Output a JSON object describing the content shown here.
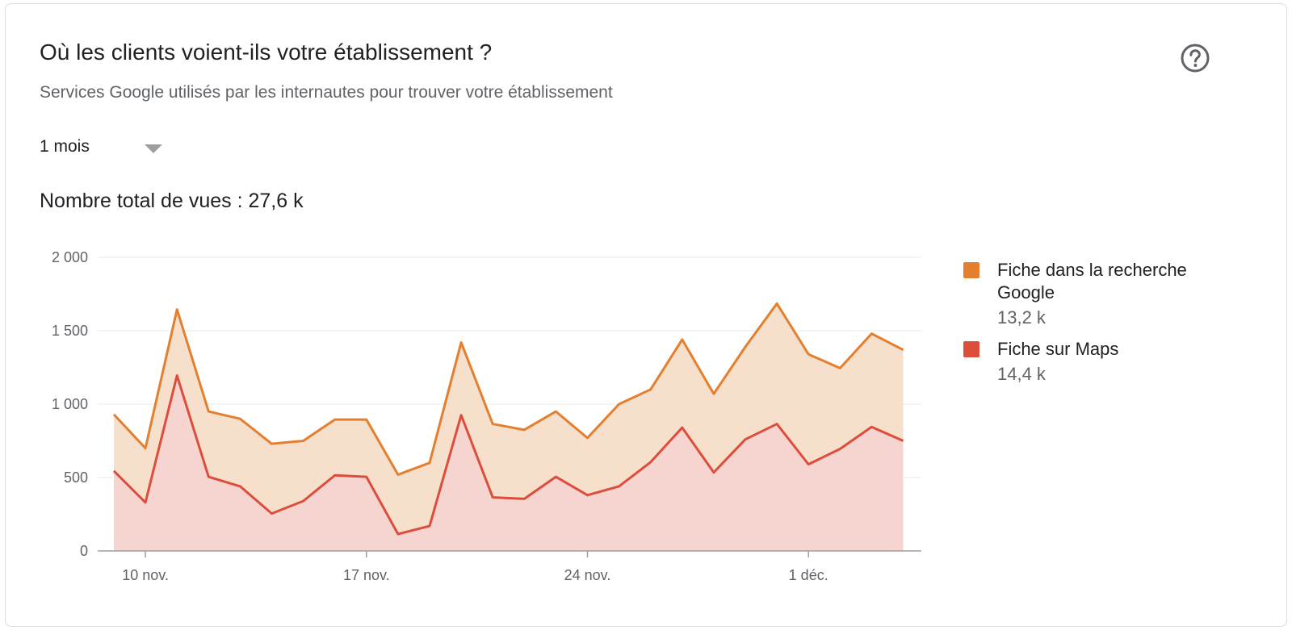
{
  "card": {
    "title": "Où les clients voient-ils votre établissement ?",
    "subtitle": "Services Google utilisés par les internautes pour trouver votre établissement",
    "help_icon": "help-circle-icon",
    "period_selector": {
      "selected": "1 mois",
      "caret_icon": "caret-down-icon"
    },
    "total_label": "Nombre total de vues : 27,6 k"
  },
  "legend": [
    {
      "name": "Fiche dans la recherche Google",
      "value": "13,2 k",
      "color": "#e37f2f"
    },
    {
      "name": "Fiche sur Maps",
      "value": "14,4 k",
      "color": "#dc4d3c"
    }
  ],
  "chart_data": {
    "type": "area",
    "stacked": true,
    "x": [
      "9 nov.",
      "10 nov.",
      "11 nov.",
      "12 nov.",
      "13 nov.",
      "14 nov.",
      "15 nov.",
      "16 nov.",
      "17 nov.",
      "18 nov.",
      "19 nov.",
      "20 nov.",
      "21 nov.",
      "22 nov.",
      "23 nov.",
      "24 nov.",
      "25 nov.",
      "26 nov.",
      "27 nov.",
      "28 nov.",
      "29 nov.",
      "30 nov.",
      "1 déc.",
      "2 déc.",
      "3 déc.",
      "4 déc."
    ],
    "x_ticks": [
      "10 nov.",
      "17 nov.",
      "24 nov.",
      "1 déc."
    ],
    "y_ticks": [
      0,
      500,
      1000,
      1500,
      2000
    ],
    "y_tick_labels": [
      "0",
      "500",
      "1 000",
      "1 500",
      "2 000"
    ],
    "ylim": [
      0,
      2000
    ],
    "grid": true,
    "legend_position": "right",
    "series": [
      {
        "name": "Fiche sur Maps",
        "color": "#dc4d3c",
        "fill": "#f6d4d0",
        "values": [
          545,
          330,
          1195,
          505,
          440,
          255,
          340,
          515,
          505,
          115,
          170,
          925,
          365,
          355,
          505,
          380,
          440,
          605,
          840,
          535,
          760,
          865,
          590,
          695,
          845,
          750
        ]
      },
      {
        "name": "Fiche dans la recherche Google",
        "color": "#e37f2f",
        "fill": "#f6dfcb",
        "values": [
          385,
          370,
          450,
          445,
          460,
          475,
          410,
          380,
          390,
          405,
          430,
          495,
          500,
          470,
          445,
          390,
          560,
          495,
          600,
          535,
          630,
          820,
          750,
          550,
          635,
          620
        ]
      }
    ]
  }
}
